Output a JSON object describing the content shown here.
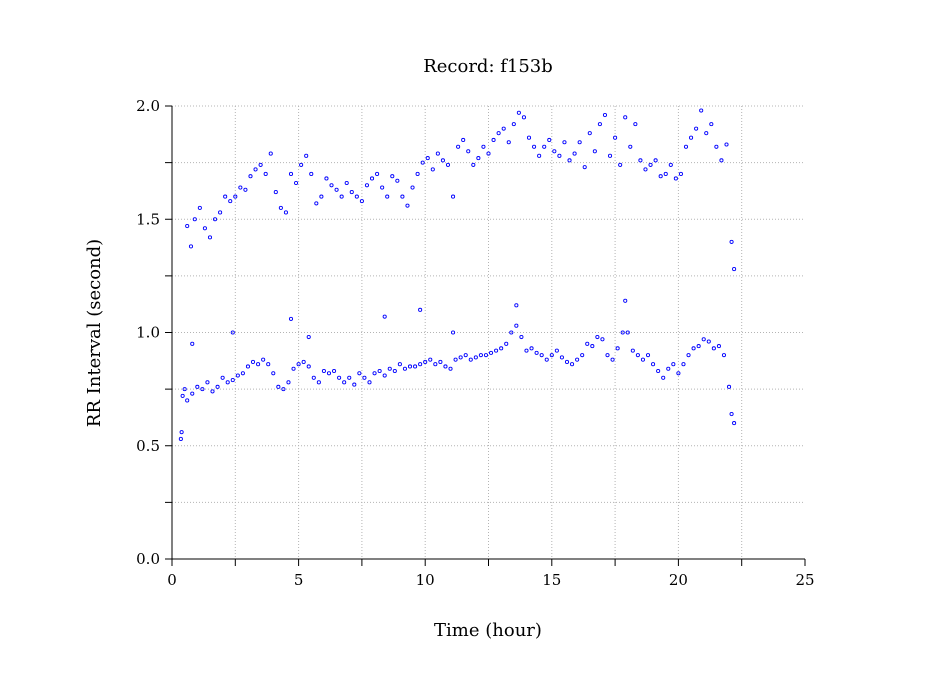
{
  "chart_data": {
    "type": "scatter",
    "title": "Record:  f153b",
    "xlabel": "Time (hour)",
    "ylabel": "RR Interval (second)",
    "xlim": [
      0,
      25
    ],
    "ylim": [
      0.0,
      2.0
    ],
    "x_ticks": [
      0,
      5,
      10,
      15,
      20,
      25
    ],
    "x_tick_labels": [
      "0",
      "5",
      "10",
      "15",
      "20",
      "25"
    ],
    "y_ticks": [
      0.0,
      0.5,
      1.0,
      1.5,
      2.0
    ],
    "y_tick_labels": [
      "0.0",
      "0.5",
      "1.0",
      "1.5",
      "2.0"
    ],
    "grid": true,
    "marker_color": "#0000ff",
    "series": [
      {
        "points": [
          [
            0.35,
            0.53
          ],
          [
            0.38,
            0.56
          ],
          [
            0.42,
            0.72
          ],
          [
            0.5,
            0.75
          ],
          [
            0.6,
            0.7
          ],
          [
            0.8,
            0.73
          ],
          [
            1.0,
            0.76
          ],
          [
            1.2,
            0.75
          ],
          [
            1.4,
            0.78
          ],
          [
            1.6,
            0.74
          ],
          [
            1.8,
            0.76
          ],
          [
            2.0,
            0.8
          ],
          [
            2.2,
            0.78
          ],
          [
            2.4,
            0.79
          ],
          [
            2.6,
            0.81
          ],
          [
            2.8,
            0.82
          ],
          [
            3.0,
            0.85
          ],
          [
            3.2,
            0.87
          ],
          [
            3.4,
            0.86
          ],
          [
            3.6,
            0.88
          ],
          [
            3.8,
            0.86
          ],
          [
            4.0,
            0.82
          ],
          [
            4.2,
            0.76
          ],
          [
            4.4,
            0.75
          ],
          [
            4.6,
            0.78
          ],
          [
            4.8,
            0.84
          ],
          [
            5.0,
            0.86
          ],
          [
            5.2,
            0.87
          ],
          [
            5.4,
            0.85
          ],
          [
            5.6,
            0.8
          ],
          [
            5.8,
            0.78
          ],
          [
            6.0,
            0.83
          ],
          [
            6.2,
            0.82
          ],
          [
            6.4,
            0.83
          ],
          [
            6.6,
            0.8
          ],
          [
            6.8,
            0.78
          ],
          [
            7.0,
            0.8
          ],
          [
            7.2,
            0.77
          ],
          [
            7.4,
            0.82
          ],
          [
            7.6,
            0.8
          ],
          [
            7.8,
            0.78
          ],
          [
            8.0,
            0.82
          ],
          [
            8.2,
            0.83
          ],
          [
            8.4,
            0.81
          ],
          [
            8.6,
            0.84
          ],
          [
            8.8,
            0.83
          ],
          [
            9.0,
            0.86
          ],
          [
            9.2,
            0.84
          ],
          [
            9.4,
            0.85
          ],
          [
            9.6,
            0.85
          ],
          [
            9.8,
            0.86
          ],
          [
            10.0,
            0.87
          ],
          [
            10.2,
            0.88
          ],
          [
            10.4,
            0.86
          ],
          [
            10.6,
            0.87
          ],
          [
            10.8,
            0.85
          ],
          [
            11.0,
            0.84
          ],
          [
            11.2,
            0.88
          ],
          [
            11.4,
            0.89
          ],
          [
            11.6,
            0.9
          ],
          [
            11.8,
            0.88
          ],
          [
            12.0,
            0.89
          ],
          [
            12.2,
            0.9
          ],
          [
            12.4,
            0.9
          ],
          [
            12.6,
            0.91
          ],
          [
            12.8,
            0.92
          ],
          [
            13.0,
            0.93
          ],
          [
            13.2,
            0.95
          ],
          [
            13.4,
            1.0
          ],
          [
            13.6,
            1.03
          ],
          [
            13.8,
            0.98
          ],
          [
            14.0,
            0.92
          ],
          [
            14.2,
            0.93
          ],
          [
            14.4,
            0.91
          ],
          [
            14.6,
            0.9
          ],
          [
            14.8,
            0.88
          ],
          [
            15.0,
            0.9
          ],
          [
            15.2,
            0.92
          ],
          [
            15.4,
            0.89
          ],
          [
            15.6,
            0.87
          ],
          [
            15.8,
            0.86
          ],
          [
            16.0,
            0.88
          ],
          [
            16.2,
            0.9
          ],
          [
            16.4,
            0.95
          ],
          [
            16.6,
            0.94
          ],
          [
            16.8,
            0.98
          ],
          [
            17.0,
            0.97
          ],
          [
            17.2,
            0.9
          ],
          [
            17.4,
            0.88
          ],
          [
            17.6,
            0.93
          ],
          [
            17.8,
            1.0
          ],
          [
            18.0,
            1.0
          ],
          [
            18.2,
            0.92
          ],
          [
            18.4,
            0.9
          ],
          [
            18.6,
            0.88
          ],
          [
            18.8,
            0.9
          ],
          [
            19.0,
            0.86
          ],
          [
            19.2,
            0.83
          ],
          [
            19.4,
            0.8
          ],
          [
            19.6,
            0.84
          ],
          [
            19.8,
            0.86
          ],
          [
            20.0,
            0.82
          ],
          [
            20.2,
            0.86
          ],
          [
            20.4,
            0.9
          ],
          [
            20.6,
            0.93
          ],
          [
            20.8,
            0.94
          ],
          [
            21.0,
            0.97
          ],
          [
            21.2,
            0.96
          ],
          [
            21.4,
            0.93
          ],
          [
            21.6,
            0.94
          ],
          [
            21.8,
            0.9
          ],
          [
            22.0,
            0.76
          ],
          [
            22.1,
            0.64
          ],
          [
            22.2,
            0.6
          ],
          [
            0.6,
            1.47
          ],
          [
            0.75,
            1.38
          ],
          [
            0.9,
            1.5
          ],
          [
            1.1,
            1.55
          ],
          [
            1.3,
            1.46
          ],
          [
            1.5,
            1.42
          ],
          [
            1.7,
            1.5
          ],
          [
            1.9,
            1.53
          ],
          [
            2.1,
            1.6
          ],
          [
            2.3,
            1.58
          ],
          [
            2.5,
            1.6
          ],
          [
            2.7,
            1.64
          ],
          [
            2.9,
            1.63
          ],
          [
            3.1,
            1.69
          ],
          [
            3.3,
            1.72
          ],
          [
            3.5,
            1.74
          ],
          [
            3.7,
            1.7
          ],
          [
            3.9,
            1.79
          ],
          [
            4.1,
            1.62
          ],
          [
            4.3,
            1.55
          ],
          [
            4.5,
            1.53
          ],
          [
            4.7,
            1.7
          ],
          [
            4.9,
            1.66
          ],
          [
            5.1,
            1.74
          ],
          [
            5.3,
            1.78
          ],
          [
            5.5,
            1.7
          ],
          [
            5.7,
            1.57
          ],
          [
            5.9,
            1.6
          ],
          [
            6.1,
            1.68
          ],
          [
            6.3,
            1.65
          ],
          [
            6.5,
            1.63
          ],
          [
            6.7,
            1.6
          ],
          [
            6.9,
            1.66
          ],
          [
            7.1,
            1.62
          ],
          [
            7.3,
            1.6
          ],
          [
            7.5,
            1.58
          ],
          [
            7.7,
            1.65
          ],
          [
            7.9,
            1.68
          ],
          [
            8.1,
            1.7
          ],
          [
            8.3,
            1.64
          ],
          [
            8.5,
            1.6
          ],
          [
            8.7,
            1.69
          ],
          [
            8.9,
            1.67
          ],
          [
            9.1,
            1.6
          ],
          [
            9.3,
            1.56
          ],
          [
            9.5,
            1.64
          ],
          [
            9.7,
            1.7
          ],
          [
            9.9,
            1.75
          ],
          [
            10.1,
            1.77
          ],
          [
            10.3,
            1.72
          ],
          [
            10.5,
            1.79
          ],
          [
            10.7,
            1.76
          ],
          [
            10.9,
            1.74
          ],
          [
            11.1,
            1.6
          ],
          [
            11.3,
            1.82
          ],
          [
            11.5,
            1.85
          ],
          [
            11.7,
            1.8
          ],
          [
            11.9,
            1.74
          ],
          [
            12.1,
            1.77
          ],
          [
            12.3,
            1.82
          ],
          [
            12.5,
            1.79
          ],
          [
            12.7,
            1.85
          ],
          [
            12.9,
            1.88
          ],
          [
            13.1,
            1.9
          ],
          [
            13.3,
            1.84
          ],
          [
            13.5,
            1.92
          ],
          [
            13.7,
            1.97
          ],
          [
            13.9,
            1.95
          ],
          [
            14.1,
            1.86
          ],
          [
            14.3,
            1.82
          ],
          [
            14.5,
            1.78
          ],
          [
            14.7,
            1.82
          ],
          [
            14.9,
            1.85
          ],
          [
            15.1,
            1.8
          ],
          [
            15.3,
            1.78
          ],
          [
            15.5,
            1.84
          ],
          [
            15.7,
            1.76
          ],
          [
            15.9,
            1.79
          ],
          [
            16.1,
            1.84
          ],
          [
            16.3,
            1.73
          ],
          [
            16.5,
            1.88
          ],
          [
            16.7,
            1.8
          ],
          [
            16.9,
            1.92
          ],
          [
            17.1,
            1.96
          ],
          [
            17.3,
            1.78
          ],
          [
            17.5,
            1.86
          ],
          [
            17.7,
            1.74
          ],
          [
            17.9,
            1.95
          ],
          [
            18.1,
            1.82
          ],
          [
            18.3,
            1.92
          ],
          [
            18.5,
            1.76
          ],
          [
            18.7,
            1.72
          ],
          [
            18.9,
            1.74
          ],
          [
            19.1,
            1.76
          ],
          [
            19.3,
            1.69
          ],
          [
            19.5,
            1.7
          ],
          [
            19.7,
            1.74
          ],
          [
            19.9,
            1.68
          ],
          [
            20.1,
            1.7
          ],
          [
            20.3,
            1.82
          ],
          [
            20.5,
            1.86
          ],
          [
            20.7,
            1.9
          ],
          [
            20.9,
            1.98
          ],
          [
            21.1,
            1.88
          ],
          [
            21.3,
            1.92
          ],
          [
            21.5,
            1.82
          ],
          [
            21.7,
            1.76
          ],
          [
            21.9,
            1.83
          ],
          [
            22.1,
            1.4
          ],
          [
            22.2,
            1.28
          ],
          [
            0.8,
            0.95
          ],
          [
            2.4,
            1.0
          ],
          [
            4.7,
            1.06
          ],
          [
            5.4,
            0.98
          ],
          [
            8.4,
            1.07
          ],
          [
            9.8,
            1.1
          ],
          [
            11.1,
            1.0
          ],
          [
            13.6,
            1.12
          ],
          [
            17.9,
            1.14
          ]
        ]
      }
    ]
  }
}
